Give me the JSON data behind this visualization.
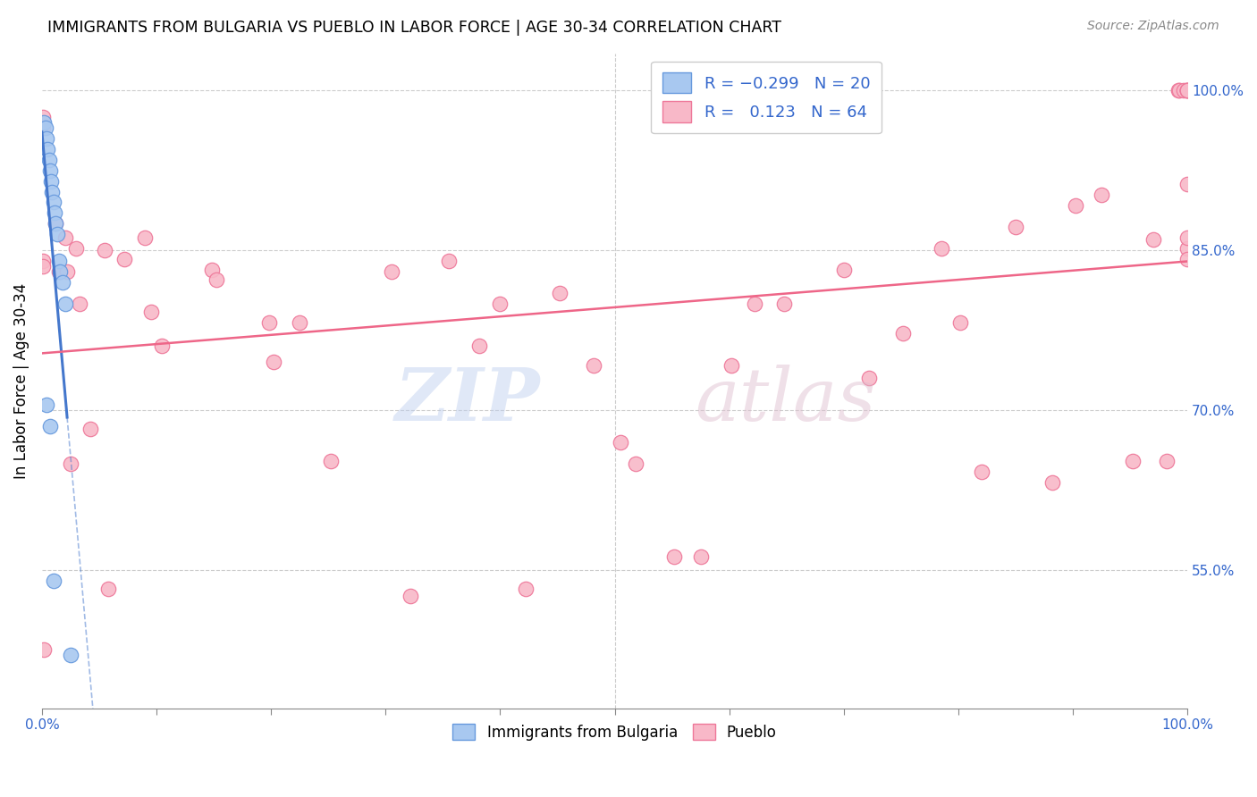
{
  "title": "IMMIGRANTS FROM BULGARIA VS PUEBLO IN LABOR FORCE | AGE 30-34 CORRELATION CHART",
  "source": "Source: ZipAtlas.com",
  "ylabel": "In Labor Force | Age 30-34",
  "xmin": 0.0,
  "xmax": 1.0,
  "ymin": 0.42,
  "ymax": 1.035,
  "ytick_right_labels": [
    "100.0%",
    "85.0%",
    "70.0%",
    "55.0%"
  ],
  "ytick_right_values": [
    1.0,
    0.85,
    0.7,
    0.55
  ],
  "blue_color": "#A8C8F0",
  "pink_color": "#F8B8C8",
  "blue_edge_color": "#6699DD",
  "pink_edge_color": "#EE7799",
  "blue_line_color": "#4477CC",
  "pink_line_color": "#EE6688",
  "grid_color": "#CCCCCC",
  "blue_scatter_x": [
    0.002,
    0.003,
    0.004,
    0.005,
    0.006,
    0.007,
    0.008,
    0.009,
    0.01,
    0.011,
    0.012,
    0.013,
    0.015,
    0.016,
    0.018,
    0.02,
    0.004,
    0.007,
    0.01,
    0.025
  ],
  "blue_scatter_y": [
    0.97,
    0.965,
    0.955,
    0.945,
    0.935,
    0.925,
    0.915,
    0.905,
    0.895,
    0.885,
    0.875,
    0.865,
    0.84,
    0.83,
    0.82,
    0.8,
    0.705,
    0.685,
    0.54,
    0.47
  ],
  "pink_scatter_x": [
    0.001,
    0.001,
    0.001,
    0.001,
    0.002,
    0.012,
    0.015,
    0.02,
    0.022,
    0.025,
    0.03,
    0.033,
    0.042,
    0.055,
    0.058,
    0.072,
    0.09,
    0.095,
    0.105,
    0.148,
    0.152,
    0.198,
    0.202,
    0.225,
    0.252,
    0.305,
    0.322,
    0.355,
    0.382,
    0.4,
    0.422,
    0.452,
    0.482,
    0.505,
    0.518,
    0.552,
    0.575,
    0.602,
    0.622,
    0.648,
    0.7,
    0.722,
    0.752,
    0.785,
    0.802,
    0.82,
    0.85,
    0.882,
    0.902,
    0.925,
    0.952,
    0.97,
    0.982,
    0.992,
    0.993,
    0.997,
    1.0,
    1.0,
    1.0,
    1.0,
    1.0,
    1.0,
    1.0,
    1.0
  ],
  "pink_scatter_y": [
    0.965,
    0.975,
    0.84,
    0.835,
    0.475,
    0.875,
    0.83,
    0.862,
    0.83,
    0.65,
    0.852,
    0.8,
    0.682,
    0.85,
    0.532,
    0.842,
    0.862,
    0.792,
    0.76,
    0.832,
    0.822,
    0.782,
    0.745,
    0.782,
    0.652,
    0.83,
    0.525,
    0.84,
    0.76,
    0.8,
    0.532,
    0.81,
    0.742,
    0.67,
    0.65,
    0.562,
    0.562,
    0.742,
    0.8,
    0.8,
    0.832,
    0.73,
    0.772,
    0.852,
    0.782,
    0.642,
    0.872,
    0.632,
    0.892,
    0.902,
    0.652,
    0.86,
    0.652,
    1.0,
    1.0,
    1.0,
    1.0,
    1.0,
    1.0,
    1.0,
    0.912,
    0.852,
    0.842,
    0.862
  ]
}
